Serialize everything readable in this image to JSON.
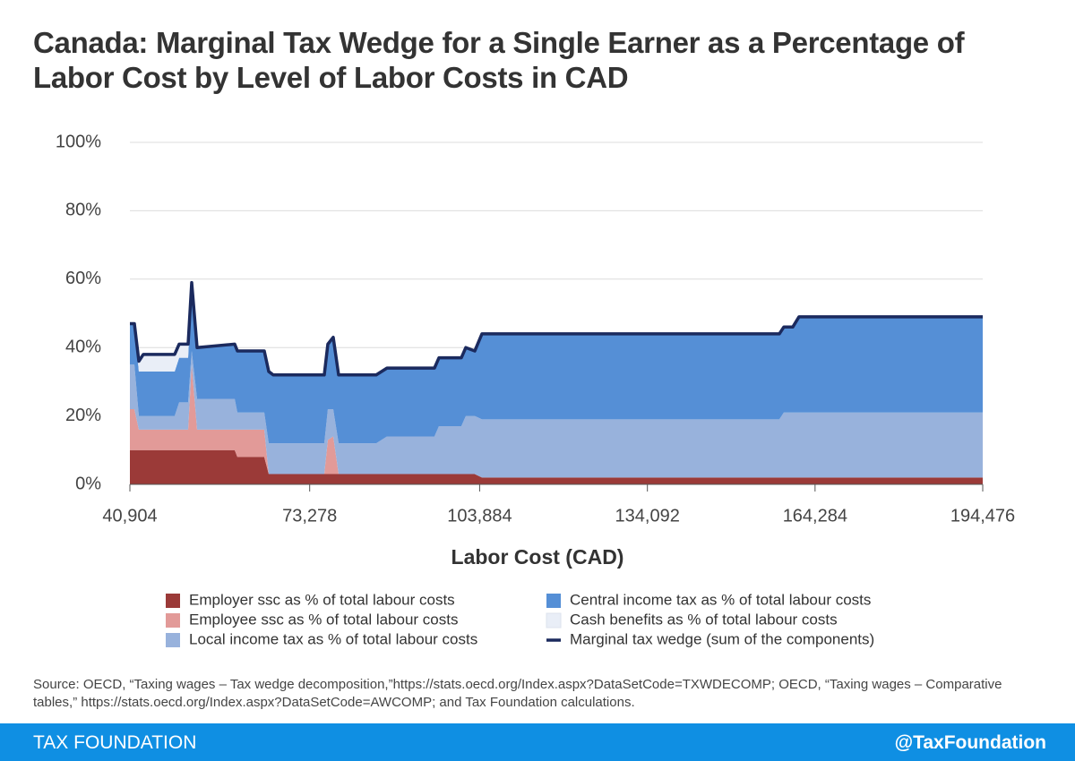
{
  "chart_data": {
    "type": "area",
    "stacked": true,
    "title": "Canada: Marginal Tax Wedge for a Single Earner as a Percentage of Labor Cost by Level of Labor Costs in CAD",
    "xlabel": "Labor Cost (CAD)",
    "x": [
      40904,
      41711,
      42517,
      43324,
      48969,
      49776,
      51389,
      52034,
      53002,
      59776,
      60260,
      65099,
      65906,
      66712,
      75906,
      76551,
      77519,
      78487,
      85262,
      87197,
      95746,
      96553,
      100585,
      101392,
      103005,
      104295,
      157847,
      158653,
      160266,
      161395,
      194476
    ],
    "xlim": [
      40904,
      194476
    ],
    "xticks": [
      {
        "value": 40904,
        "label": "40,904"
      },
      {
        "value": 73278,
        "label": "73,278"
      },
      {
        "value": 103884,
        "label": "103,884"
      },
      {
        "value": 134092,
        "label": "134,092"
      },
      {
        "value": 164284,
        "label": "164,284"
      },
      {
        "value": 194476,
        "label": "194,476"
      }
    ],
    "ylim": [
      0,
      100
    ],
    "yticks": [
      {
        "value": 0,
        "label": "0%"
      },
      {
        "value": 20,
        "label": "20%"
      },
      {
        "value": 40,
        "label": "40%"
      },
      {
        "value": 60,
        "label": "60%"
      },
      {
        "value": 80,
        "label": "80%"
      },
      {
        "value": 100,
        "label": "100%"
      }
    ],
    "grid": true,
    "legend": "bottom",
    "series": [
      {
        "name": "Employer ssc as % of total labour costs",
        "color": "#9b3a38",
        "values": [
          10,
          10,
          10,
          10,
          10,
          10,
          10,
          10,
          10,
          10,
          8,
          8,
          3,
          3,
          3,
          3,
          3,
          3,
          3,
          3,
          3,
          3,
          3,
          3,
          3,
          2,
          2,
          2,
          2,
          2,
          2
        ]
      },
      {
        "name": "Employee ssc as % of total labour costs",
        "color": "#e29a98",
        "values": [
          12,
          12,
          6,
          6,
          6,
          6,
          6,
          25,
          6,
          6,
          8,
          8,
          0,
          0,
          0,
          10,
          11,
          0,
          0,
          0,
          0,
          0,
          0,
          0,
          0,
          0,
          0,
          0,
          0,
          0,
          0
        ]
      },
      {
        "name": "Local income tax as % of total labour costs",
        "color": "#98b2dc",
        "values": [
          13,
          13,
          4,
          4,
          4,
          8,
          8,
          4,
          9,
          9,
          5,
          5,
          9,
          9,
          9,
          9,
          8,
          9,
          9,
          11,
          11,
          14,
          14,
          17,
          17,
          17,
          17,
          19,
          19,
          19,
          19
        ]
      },
      {
        "name": "Central income tax as % of total labour costs",
        "color": "#558fd6",
        "values": [
          12,
          12,
          13,
          13,
          13,
          13,
          13,
          20,
          15,
          16,
          18,
          18,
          21,
          20,
          20,
          19,
          21,
          20,
          20,
          20,
          20,
          20,
          20,
          20,
          19,
          25,
          25,
          25,
          25,
          28,
          28
        ]
      },
      {
        "name": "Cash benefits as % of total labour costs",
        "color": "#e9eef7",
        "values": [
          0,
          0,
          3,
          5,
          5,
          4,
          4,
          0,
          0,
          0,
          0,
          0,
          0,
          0,
          0,
          0,
          0,
          0,
          0,
          0,
          0,
          0,
          0,
          0,
          0,
          0,
          0,
          0,
          0,
          0,
          0
        ]
      },
      {
        "name": "Marginal tax wedge (sum of the components)",
        "color": "#1b2a5e",
        "type": "line",
        "values": [
          47,
          47,
          36,
          38,
          38,
          41,
          41,
          59,
          40,
          41,
          39,
          39,
          33,
          32,
          32,
          41,
          43,
          32,
          32,
          34,
          34,
          37,
          37,
          40,
          39,
          44,
          44,
          46,
          46,
          49,
          49
        ]
      }
    ],
    "source": "Source: OECD, “Taxing wages – Tax wedge decomposition,”https://stats.oecd.org/Index.aspx?DataSetCode=TXWDECOMP; OECD, “Taxing wages – Comparative tables,” https://stats.oecd.org/Index.aspx?DataSetCode=AWCOMP; and Tax Foundation calculations."
  },
  "footer": {
    "left": "TAX FOUNDATION",
    "right": "@TaxFoundation"
  }
}
